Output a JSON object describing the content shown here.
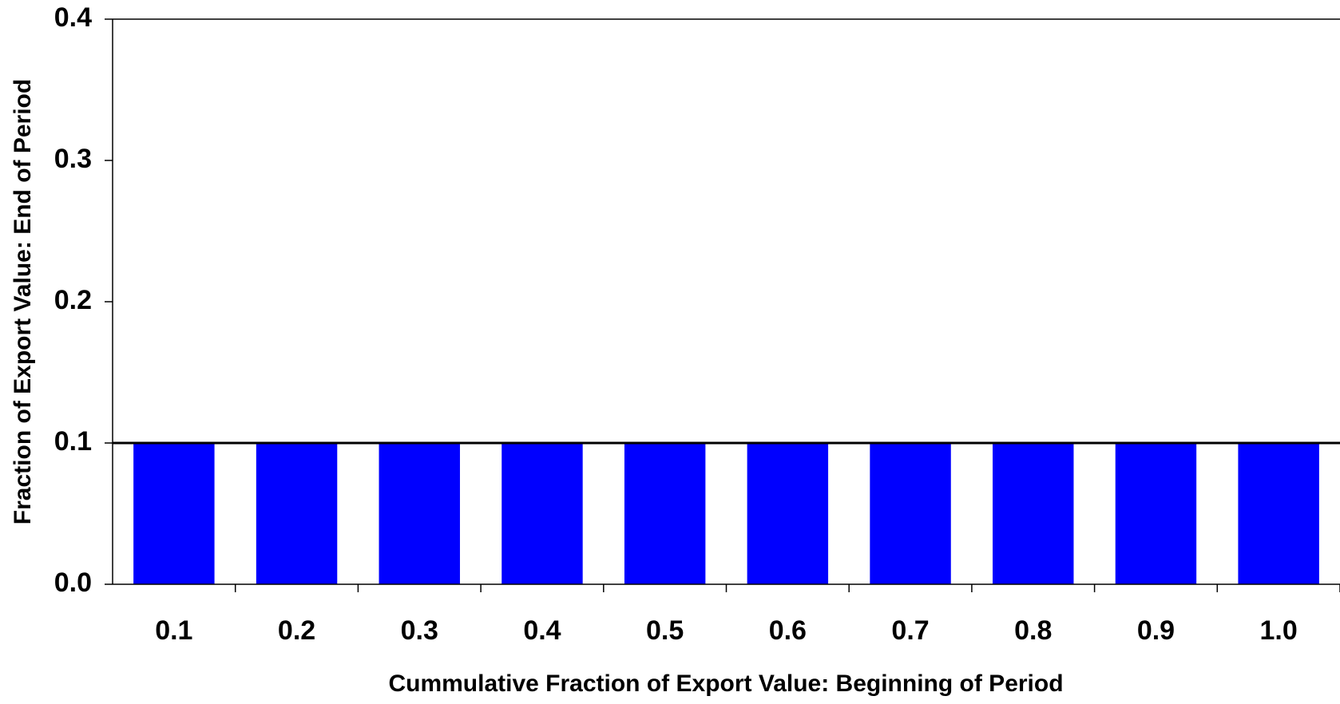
{
  "chart_data": {
    "type": "bar",
    "x_label": "Cummulative Fraction of Export Value: Beginning of Period",
    "y_label": "Fraction of Export Value: End of Period",
    "categories": [
      "0.1",
      "0.2",
      "0.3",
      "0.4",
      "0.5",
      "0.6",
      "0.7",
      "0.8",
      "0.9",
      "1.0"
    ],
    "values": [
      0.1,
      0.1,
      0.1,
      0.1,
      0.1,
      0.1,
      0.1,
      0.1,
      0.1,
      0.1
    ],
    "color": "#0000ff",
    "reference_line": 0.1,
    "ylim": [
      0,
      0.4
    ],
    "yticks": [
      {
        "value": 0,
        "label": "0.0"
      },
      0.1,
      0.2,
      0.3,
      0.4
    ]
  }
}
